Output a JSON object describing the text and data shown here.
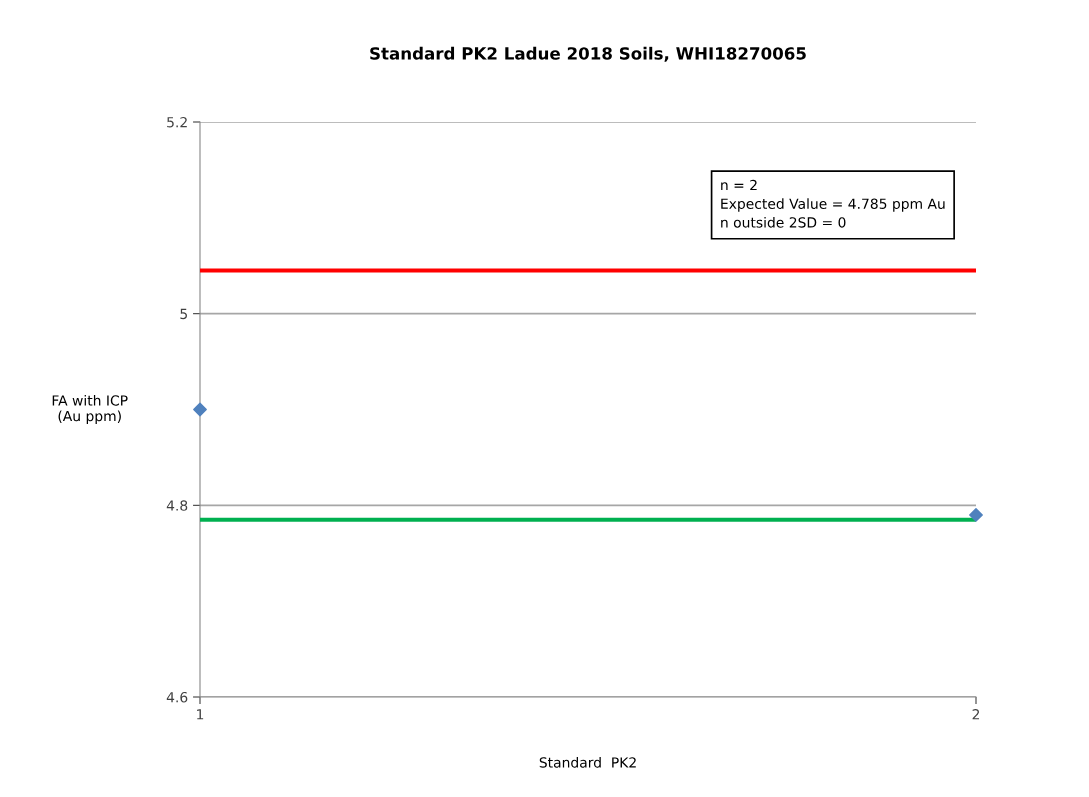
{
  "chart_data": {
    "type": "scatter",
    "title": "Standard PK2 Ladue 2018 Soils, WHI18270065",
    "xlabel": "Standard  PK2",
    "ylabel": "FA with ICP\n(Au ppm)",
    "x": [
      1,
      2
    ],
    "series": [
      {
        "color": "#4f81bd",
        "values": [
          4.9,
          4.79
        ]
      }
    ],
    "marker": "diamond",
    "xlim": [
      1,
      2
    ],
    "xticks": [
      1,
      2
    ],
    "ylim": [
      4.6,
      5.2
    ],
    "yticks": [
      4.6,
      4.8,
      5,
      5.2
    ],
    "grid": "y",
    "ref_lines": [
      {
        "axis": "y",
        "value": 5.045,
        "color": "#ff0000"
      },
      {
        "axis": "y",
        "value": 4.785,
        "color": "#00b050"
      }
    ],
    "annotations": [
      "n = 2\nExpected Value = 4.785 ppm Au\nn outside 2SD = 0"
    ]
  }
}
